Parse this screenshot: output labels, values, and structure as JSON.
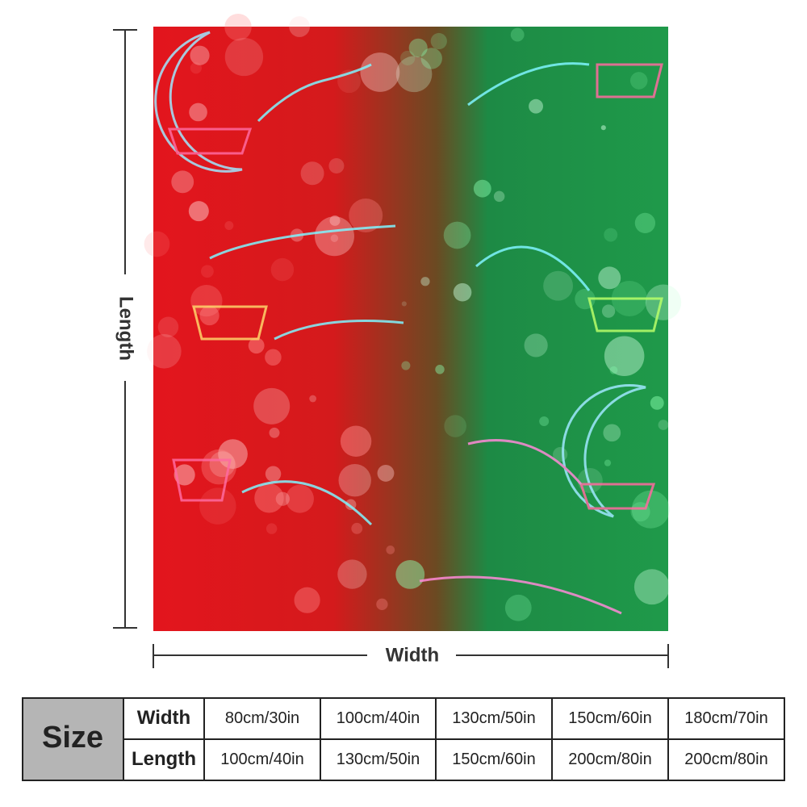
{
  "dimensions": {
    "length": "Length",
    "width": "Width"
  },
  "size_table": {
    "header": "Size",
    "rows": [
      {
        "label": "Width",
        "values": [
          "80cm/30in",
          "100cm/40in",
          "130cm/50in",
          "150cm/60in",
          "180cm/70in"
        ]
      },
      {
        "label": "Length",
        "values": [
          "100cm/40in",
          "130cm/50in",
          "150cm/60in",
          "200cm/80in",
          "200cm/80in"
        ]
      }
    ]
  }
}
